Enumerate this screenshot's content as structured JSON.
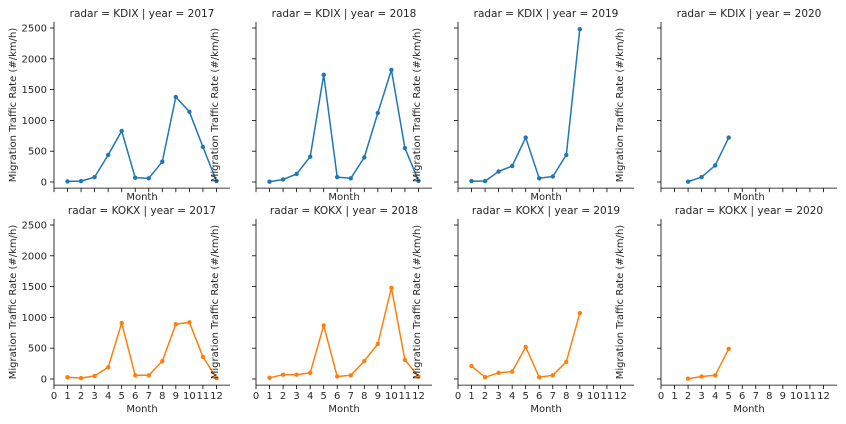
{
  "chart_data": {
    "type": "line",
    "facet_rows": "radar",
    "facet_cols": "year",
    "xlabel": "Month",
    "ylabel": "Migration Traffic Rate (#/km/h)",
    "xlim": [
      0,
      13
    ],
    "ylim": [
      -100,
      2600
    ],
    "x_ticks": [
      0,
      1,
      2,
      3,
      4,
      5,
      6,
      7,
      8,
      9,
      10,
      11,
      12
    ],
    "y_ticks": [
      0,
      500,
      1000,
      1500,
      2000,
      2500
    ],
    "colors": {
      "KDIX": "#1f77b4",
      "KOKX": "#ff7f0e"
    },
    "panels": [
      {
        "title": "radar = KDIX | year = 2017",
        "radar": "KDIX",
        "year": "2017",
        "x": [
          1,
          2,
          3,
          4,
          5,
          6,
          7,
          8,
          9,
          10,
          11,
          12
        ],
        "y": [
          10,
          15,
          80,
          440,
          830,
          70,
          60,
          330,
          1380,
          1140,
          570,
          15
        ]
      },
      {
        "title": "radar = KDIX | year = 2018",
        "radar": "KDIX",
        "year": "2018",
        "x": [
          1,
          2,
          3,
          4,
          5,
          6,
          7,
          8,
          9,
          10,
          11,
          12
        ],
        "y": [
          5,
          40,
          130,
          410,
          1740,
          80,
          60,
          400,
          1120,
          1820,
          550,
          20
        ]
      },
      {
        "title": "radar = KDIX | year = 2019",
        "radar": "KDIX",
        "year": "2019",
        "x": [
          1,
          2,
          3,
          4,
          5,
          6,
          7,
          8,
          9
        ],
        "y": [
          15,
          15,
          170,
          260,
          720,
          60,
          90,
          440,
          2480
        ]
      },
      {
        "title": "radar = KDIX | year = 2020",
        "radar": "KDIX",
        "year": "2020",
        "x": [
          2,
          3,
          4,
          5
        ],
        "y": [
          5,
          80,
          270,
          720
        ]
      },
      {
        "title": "radar = KOKX | year = 2017",
        "radar": "KOKX",
        "year": "2017",
        "x": [
          1,
          2,
          3,
          4,
          5,
          6,
          7,
          8,
          9,
          10,
          11,
          12
        ],
        "y": [
          30,
          15,
          50,
          190,
          910,
          60,
          60,
          290,
          890,
          920,
          360,
          15
        ]
      },
      {
        "title": "radar = KOKX | year = 2018",
        "radar": "KOKX",
        "year": "2018",
        "x": [
          1,
          2,
          3,
          4,
          5,
          6,
          7,
          8,
          9,
          10,
          11,
          12
        ],
        "y": [
          20,
          70,
          70,
          100,
          870,
          40,
          60,
          290,
          570,
          1480,
          310,
          40
        ]
      },
      {
        "title": "radar = KOKX | year = 2019",
        "radar": "KOKX",
        "year": "2019",
        "x": [
          1,
          2,
          3,
          4,
          5,
          6,
          7,
          8,
          9
        ],
        "y": [
          210,
          30,
          100,
          120,
          520,
          30,
          60,
          280,
          1070
        ]
      },
      {
        "title": "radar = KOKX | year = 2020",
        "radar": "KOKX",
        "year": "2020",
        "x": [
          2,
          3,
          4,
          5
        ],
        "y": [
          5,
          40,
          60,
          490
        ]
      }
    ]
  }
}
